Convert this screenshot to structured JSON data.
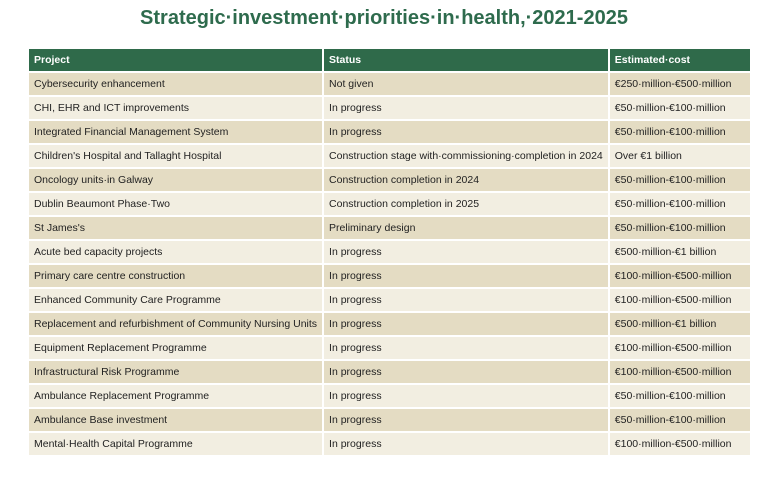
{
  "header": {
    "title": "Strategic·investment·priorities·in·health,·2021-2025"
  },
  "table": {
    "columns": [
      "Project",
      "Status",
      "Estimated·cost"
    ],
    "rows": [
      [
        "Cybersecurity enhancement",
        "Not given",
        "€250·million-€500·million"
      ],
      [
        "CHI, EHR and ICT improvements",
        "In progress",
        "€50·million-€100·million"
      ],
      [
        "Integrated Financial Management System",
        "In progress",
        "€50·million-€100·million"
      ],
      [
        "Children's Hospital and Tallaght Hospital",
        "Construction stage with·commissioning·completion in 2024",
        "Over €1 billion"
      ],
      [
        "Oncology units·in Galway",
        "Construction completion in 2024",
        "€50·million-€100·million"
      ],
      [
        "Dublin Beaumont Phase·Two",
        "Construction completion in 2025",
        "€50·million-€100·million"
      ],
      [
        "St James's",
        "Preliminary design",
        "€50·million-€100·million"
      ],
      [
        "Acute bed capacity projects",
        "In progress",
        "€500·million-€1 billion"
      ],
      [
        "Primary care centre construction",
        "In progress",
        "€100·million-€500·million"
      ],
      [
        "Enhanced Community Care Programme",
        "In progress",
        "€100·million-€500·million"
      ],
      [
        "Replacement and refurbishment of Community Nursing Units",
        "In progress",
        "€500·million-€1 billion"
      ],
      [
        "Equipment Replacement Programme",
        "In progress",
        "€100·million-€500·million"
      ],
      [
        "Infrastructural Risk Programme",
        "In progress",
        "€100·million-€500·million"
      ],
      [
        "Ambulance Replacement Programme",
        "In progress",
        "€50·million-€100·million"
      ],
      [
        "Ambulance Base investment",
        "In progress",
        "€50·million-€100·million"
      ],
      [
        "Mental·Health Capital Programme",
        "In progress",
        "€100·million-€500·million"
      ]
    ]
  }
}
